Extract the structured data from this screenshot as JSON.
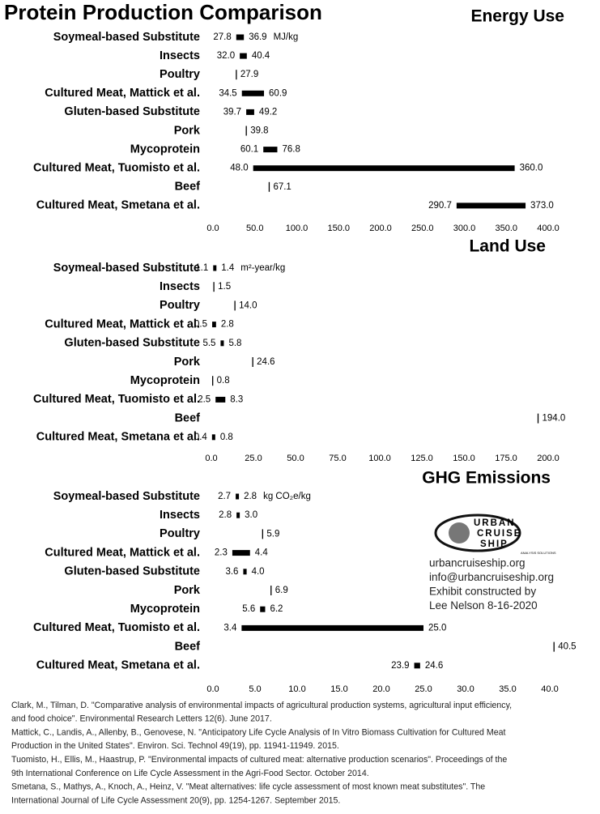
{
  "title": "Protein Production Comparison",
  "chart_data": [
    {
      "type": "range",
      "title": "Energy Use",
      "unit": "MJ/kg",
      "categories": [
        "Soymeal-based Substitute",
        "Insects",
        "Poultry",
        "Cultured Meat, Mattick et al.",
        "Gluten-based Substitute",
        "Pork",
        "Mycoprotein",
        "Cultured Meat, Tuomisto et al.",
        "Beef",
        "Cultured Meat, Smetana et al."
      ],
      "low": [
        27.8,
        32.0,
        null,
        34.5,
        39.7,
        null,
        60.1,
        48.0,
        null,
        290.7
      ],
      "high": [
        36.9,
        40.4,
        27.9,
        60.9,
        49.2,
        39.8,
        76.8,
        360.0,
        67.1,
        373.0
      ],
      "low_labels": [
        "27.8",
        "32.0",
        null,
        "34.5",
        "39.7",
        null,
        "60.1",
        "48.0",
        null,
        "290.7"
      ],
      "high_labels": [
        "36.9",
        "40.4",
        "27.9",
        "60.9",
        "49.2",
        "39.8",
        "76.8",
        "360.0",
        "67.1",
        "373.0"
      ],
      "color": "#000000",
      "xlim": [
        0,
        400
      ],
      "xticks": [
        {
          "value": 0,
          "label": "0.0"
        },
        {
          "value": 50,
          "label": "50.0"
        },
        {
          "value": 100,
          "label": "100.0"
        },
        {
          "value": 150,
          "label": "150.0"
        },
        {
          "value": 200,
          "label": "200.0"
        },
        {
          "value": 250,
          "label": "250.0"
        },
        {
          "value": 300,
          "label": "300.0"
        },
        {
          "value": 350,
          "label": "350.0"
        },
        {
          "value": 400,
          "label": "400.0"
        }
      ]
    },
    {
      "type": "range",
      "title": "Land Use",
      "unit": "m²-year/kg",
      "categories": [
        "Soymeal-based Substitute",
        "Insects",
        "Poultry",
        "Cultured Meat, Mattick et al.",
        "Gluten-based Substitute",
        "Pork",
        "Mycoprotein",
        "Cultured Meat, Tuomisto et al.",
        "Beef",
        "Cultured Meat, Smetana et al."
      ],
      "low": [
        1.1,
        null,
        null,
        0.5,
        5.5,
        null,
        null,
        2.5,
        null,
        0.4
      ],
      "high": [
        1.4,
        1.5,
        14.0,
        2.8,
        5.8,
        24.6,
        0.8,
        8.3,
        194.0,
        0.8
      ],
      "low_labels": [
        "1.1",
        null,
        null,
        "0.5",
        "5.5",
        null,
        null,
        "2.5",
        null,
        "0.4"
      ],
      "high_labels": [
        "1.4",
        "1.5",
        "14.0",
        "2.8",
        "5.8",
        "24.6",
        "0.8",
        "8.3",
        "194.0",
        "0.8"
      ],
      "color": "#000000",
      "xlim": [
        0,
        200
      ],
      "xticks": [
        {
          "value": 0,
          "label": "0.0"
        },
        {
          "value": 25,
          "label": "25.0"
        },
        {
          "value": 50,
          "label": "50.0"
        },
        {
          "value": 75,
          "label": "75.0"
        },
        {
          "value": 100,
          "label": "100.0"
        },
        {
          "value": 125,
          "label": "125.0"
        },
        {
          "value": 150,
          "label": "150.0"
        },
        {
          "value": 175,
          "label": "175.0"
        },
        {
          "value": 200,
          "label": "200.0"
        }
      ]
    },
    {
      "type": "range",
      "title": "GHG Emissions",
      "unit": "kg CO₂e/kg",
      "categories": [
        "Soymeal-based Substitute",
        "Insects",
        "Poultry",
        "Cultured Meat, Mattick et al.",
        "Gluten-based Substitute",
        "Pork",
        "Mycoprotein",
        "Cultured Meat, Tuomisto et al.",
        "Beef",
        "Cultured Meat, Smetana et al."
      ],
      "low": [
        2.7,
        2.8,
        null,
        2.3,
        3.6,
        null,
        5.6,
        3.4,
        null,
        23.9
      ],
      "high": [
        2.8,
        3.0,
        5.9,
        4.4,
        4.0,
        6.9,
        6.2,
        25.0,
        40.5,
        24.6
      ],
      "low_labels": [
        "2.7",
        "2.8",
        null,
        "2.3",
        "3.6",
        null,
        "5.6",
        "3.4",
        null,
        "23.9"
      ],
      "high_labels": [
        "2.8",
        "3.0",
        "5.9",
        "4.4",
        "4.0",
        "6.9",
        "6.2",
        "25.0",
        "40.5",
        "24.6"
      ],
      "color": "#000000",
      "xlim": [
        0,
        40
      ],
      "xticks": [
        {
          "value": 0,
          "label": "0.0"
        },
        {
          "value": 5,
          "label": "5.0"
        },
        {
          "value": 10,
          "label": "10.0"
        },
        {
          "value": 15,
          "label": "15.0"
        },
        {
          "value": 20,
          "label": "20.0"
        },
        {
          "value": 25,
          "label": "25.0"
        },
        {
          "value": 30,
          "label": "30.0"
        },
        {
          "value": 35,
          "label": "35.0"
        },
        {
          "value": 40,
          "label": "40.0"
        }
      ]
    }
  ],
  "logo": {
    "lines": [
      "URBAN",
      "CRUISE",
      "SHIP"
    ],
    "tagline": "ANALYSIS SOLUTIONS"
  },
  "contact": [
    "urbancruiseship.org",
    "info@urbancruiseship.org",
    "Exhibit constructed by",
    "Lee Nelson 8-16-2020"
  ],
  "references": [
    [
      "Clark, M., Tilman, D. \"Comparative analysis of environmental impacts of agricultural production systems, agricultural input efficiency,",
      "and food choice\". Environmental Research Letters 12(6). June 2017."
    ],
    [
      "Mattick, C., Landis, A., Allenby, B., Genovese, N. \"Anticipatory Life Cycle Analysis of In Vitro Biomass Cultivation for Cultured Meat",
      "Production in the United States\". Environ. Sci. Technol 49(19), pp. 11941-11949. 2015."
    ],
    [
      "Tuomisto, H., Ellis, M., Haastrup, P. \"Environmental impacts of cultured meat: alternative production scenarios\". Proceedings of the",
      "9th International Conference on Life Cycle Assessment in the Agri-Food Sector. October 2014."
    ],
    [
      "Smetana, S., Mathys, A., Knoch, A., Heinz, V. \"Meat alternatives: life cycle assessment of most known meat substitutes\". The",
      "International Journal of Life Cycle Assessment 20(9), pp. 1254-1267. September 2015."
    ]
  ]
}
